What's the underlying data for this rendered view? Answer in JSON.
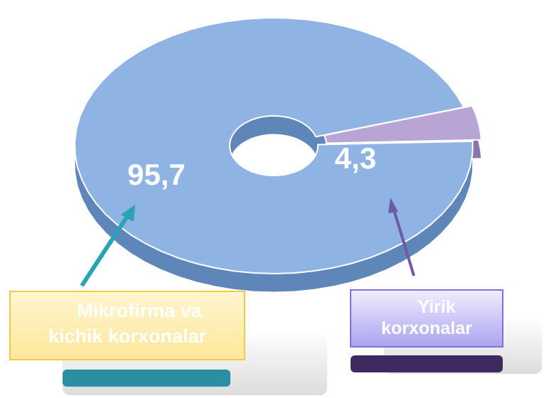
{
  "chart_data": {
    "type": "donut",
    "categories": [
      "Mikrofirma va kichik korxonalar",
      "Yirik korxonalar"
    ],
    "values": [
      95.7,
      4.3
    ],
    "value_labels": [
      "95,7",
      "4,3"
    ],
    "colors": [
      "#8fb4e3",
      "#b8a5d5"
    ]
  }
}
